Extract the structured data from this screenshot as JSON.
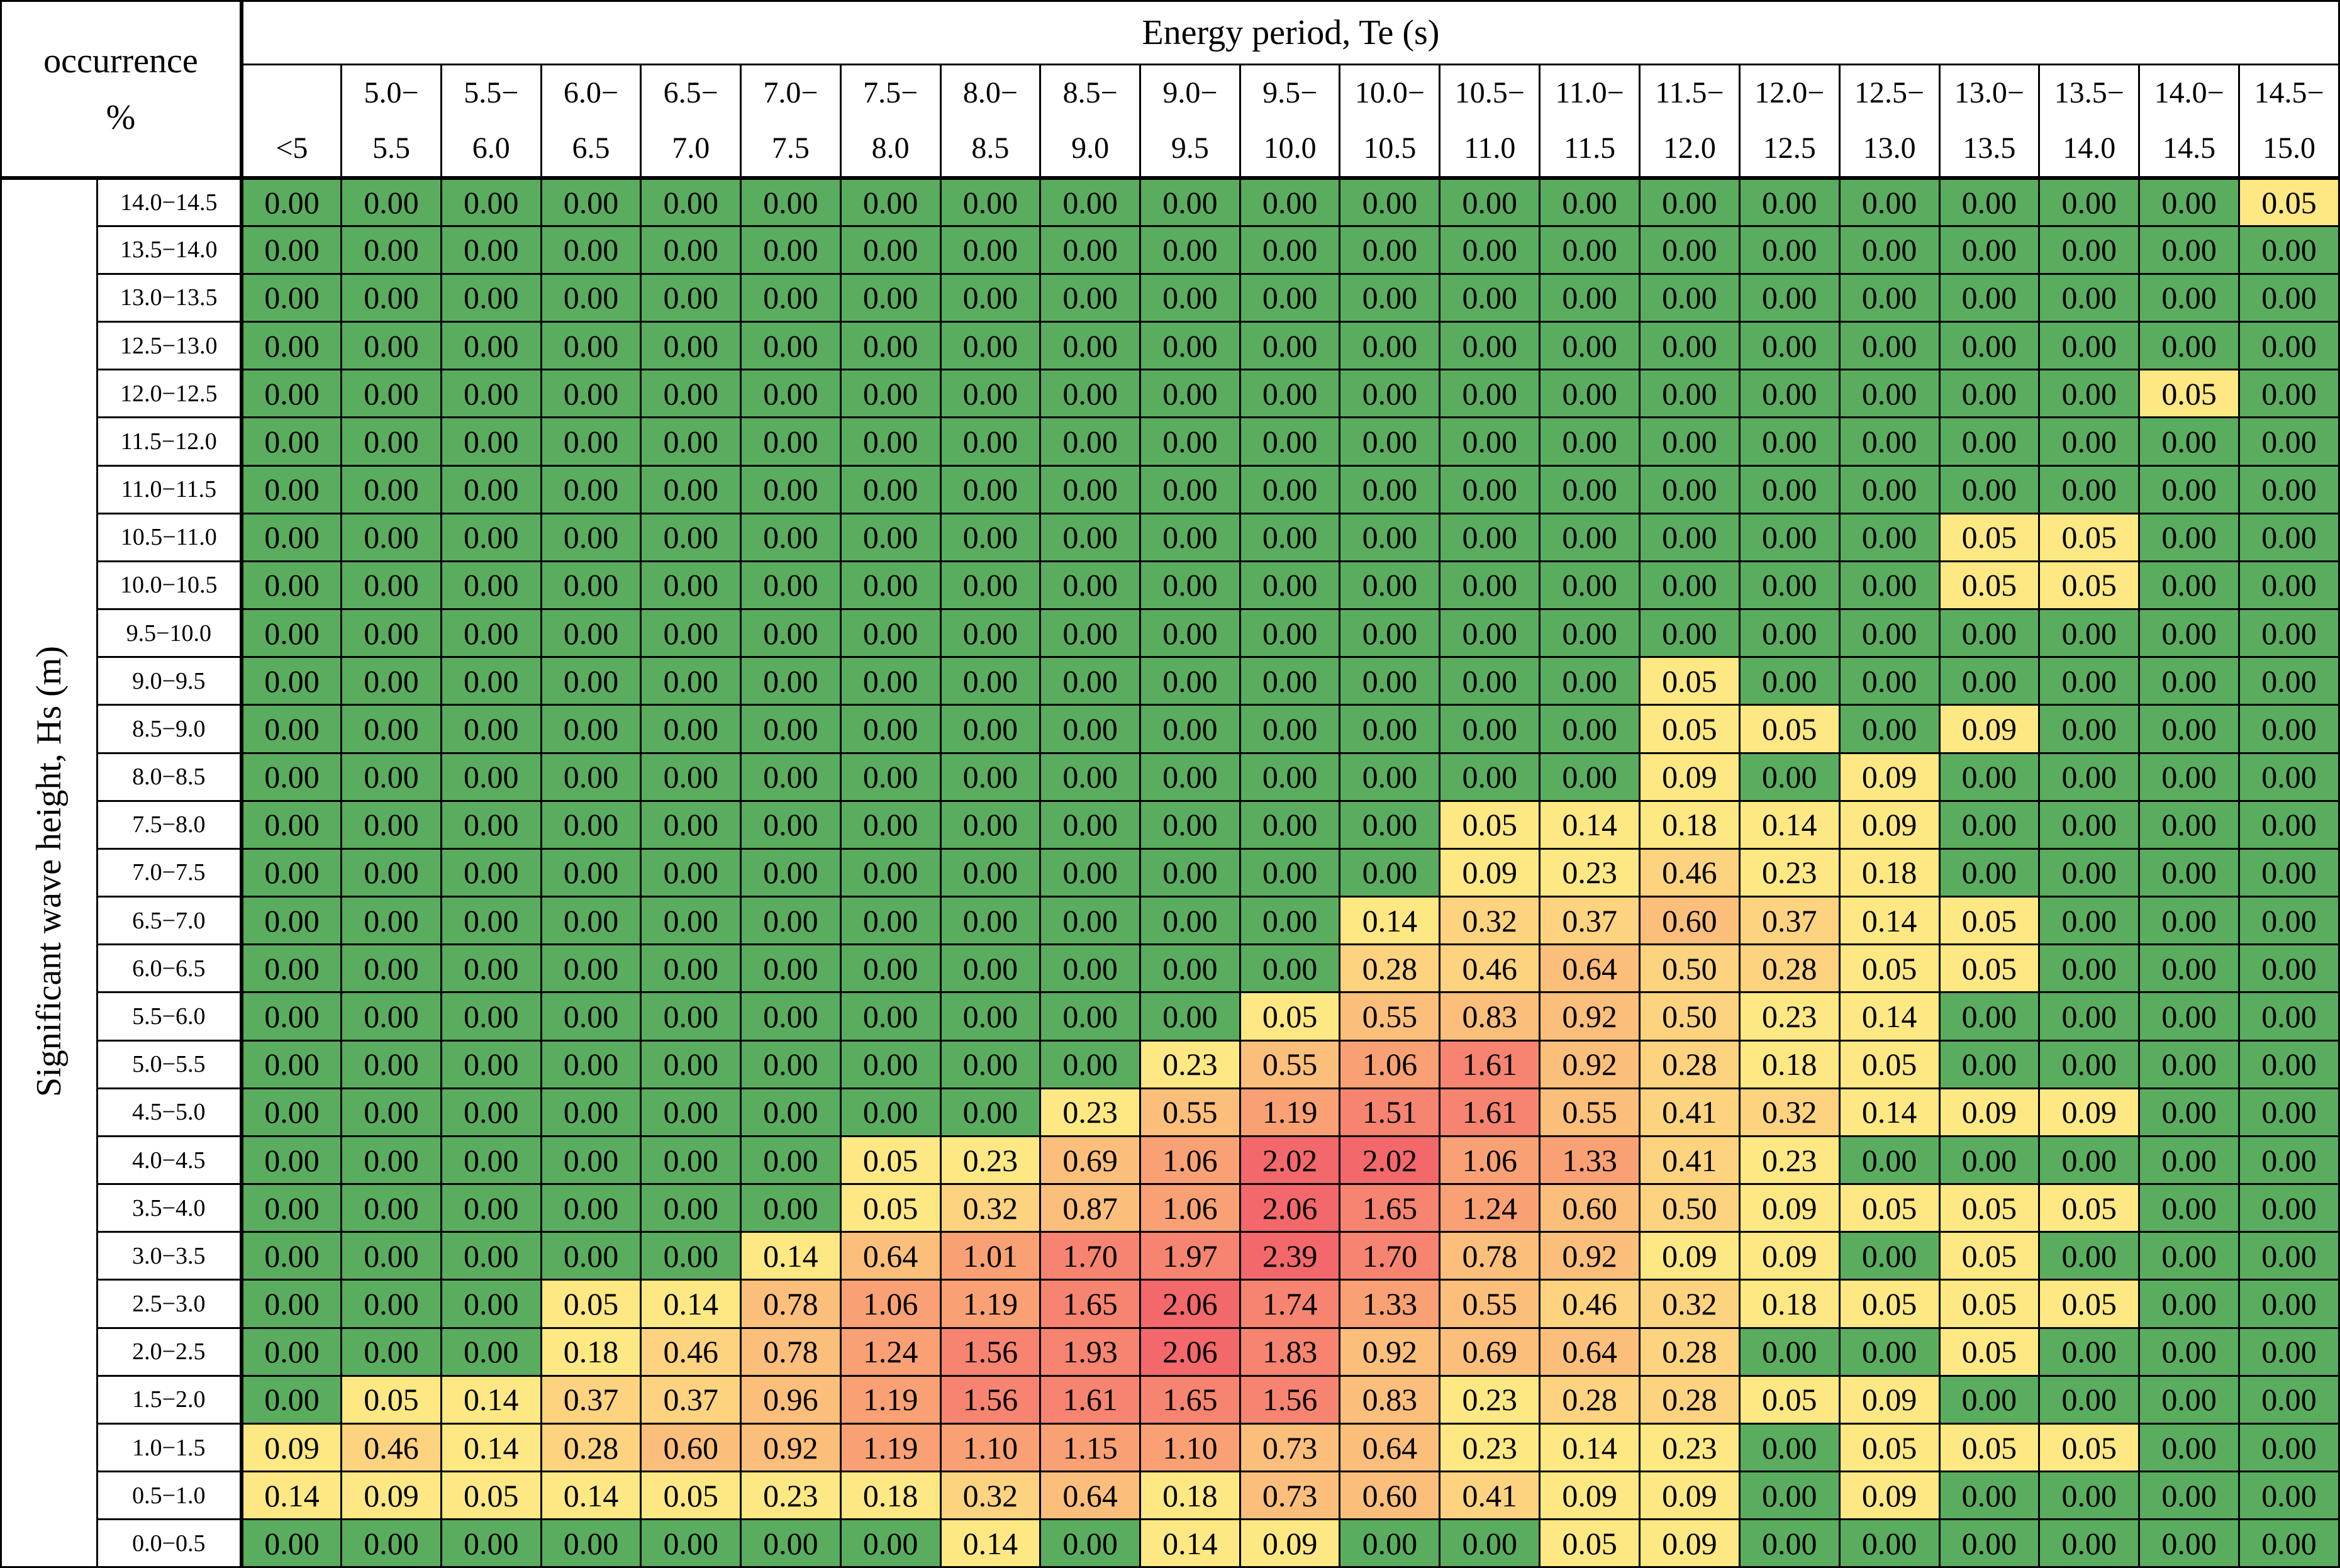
{
  "chart_data": {
    "type": "heatmap",
    "corner_label": [
      "occurrence",
      "%"
    ],
    "xlabel": "Energy period, Te (s)",
    "ylabel": "Significant wave height, Hs (m)",
    "x_categories": [
      [
        "",
        "<5"
      ],
      [
        "5.0−",
        "5.5"
      ],
      [
        "5.5−",
        "6.0"
      ],
      [
        "6.0−",
        "6.5"
      ],
      [
        "6.5−",
        "7.0"
      ],
      [
        "7.0−",
        "7.5"
      ],
      [
        "7.5−",
        "8.0"
      ],
      [
        "8.0−",
        "8.5"
      ],
      [
        "8.5−",
        "9.0"
      ],
      [
        "9.0−",
        "9.5"
      ],
      [
        "9.5−",
        "10.0"
      ],
      [
        "10.0−",
        "10.5"
      ],
      [
        "10.5−",
        "11.0"
      ],
      [
        "11.0−",
        "11.5"
      ],
      [
        "11.5−",
        "12.0"
      ],
      [
        "12.0−",
        "12.5"
      ],
      [
        "12.5−",
        "13.0"
      ],
      [
        "13.0−",
        "13.5"
      ],
      [
        "13.5−",
        "14.0"
      ],
      [
        "14.0−",
        "14.5"
      ],
      [
        "14.5−",
        "15.0"
      ]
    ],
    "y_categories": [
      "14.0−14.5",
      "13.5−14.0",
      "13.0−13.5",
      "12.5−13.0",
      "12.0−12.5",
      "11.5−12.0",
      "11.0−11.5",
      "10.5−11.0",
      "10.0−10.5",
      "9.5−10.0",
      "9.0−9.5",
      "8.5−9.0",
      "8.0−8.5",
      "7.5−8.0",
      "7.0−7.5",
      "6.5−7.0",
      "6.0−6.5",
      "5.5−6.0",
      "5.0−5.5",
      "4.5−5.0",
      "4.0−4.5",
      "3.5−4.0",
      "3.0−3.5",
      "2.5−3.0",
      "2.0−2.5",
      "1.5−2.0",
      "1.0−1.5",
      "0.5−1.0",
      "0.0−0.5"
    ],
    "values": [
      [
        "0.00",
        "0.00",
        "0.00",
        "0.00",
        "0.00",
        "0.00",
        "0.00",
        "0.00",
        "0.00",
        "0.00",
        "0.00",
        "0.00",
        "0.00",
        "0.00",
        "0.00",
        "0.00",
        "0.00",
        "0.00",
        "0.00",
        "0.00",
        "0.05"
      ],
      [
        "0.00",
        "0.00",
        "0.00",
        "0.00",
        "0.00",
        "0.00",
        "0.00",
        "0.00",
        "0.00",
        "0.00",
        "0.00",
        "0.00",
        "0.00",
        "0.00",
        "0.00",
        "0.00",
        "0.00",
        "0.00",
        "0.00",
        "0.00",
        "0.00"
      ],
      [
        "0.00",
        "0.00",
        "0.00",
        "0.00",
        "0.00",
        "0.00",
        "0.00",
        "0.00",
        "0.00",
        "0.00",
        "0.00",
        "0.00",
        "0.00",
        "0.00",
        "0.00",
        "0.00",
        "0.00",
        "0.00",
        "0.00",
        "0.00",
        "0.00"
      ],
      [
        "0.00",
        "0.00",
        "0.00",
        "0.00",
        "0.00",
        "0.00",
        "0.00",
        "0.00",
        "0.00",
        "0.00",
        "0.00",
        "0.00",
        "0.00",
        "0.00",
        "0.00",
        "0.00",
        "0.00",
        "0.00",
        "0.00",
        "0.00",
        "0.00"
      ],
      [
        "0.00",
        "0.00",
        "0.00",
        "0.00",
        "0.00",
        "0.00",
        "0.00",
        "0.00",
        "0.00",
        "0.00",
        "0.00",
        "0.00",
        "0.00",
        "0.00",
        "0.00",
        "0.00",
        "0.00",
        "0.00",
        "0.00",
        "0.05",
        "0.00"
      ],
      [
        "0.00",
        "0.00",
        "0.00",
        "0.00",
        "0.00",
        "0.00",
        "0.00",
        "0.00",
        "0.00",
        "0.00",
        "0.00",
        "0.00",
        "0.00",
        "0.00",
        "0.00",
        "0.00",
        "0.00",
        "0.00",
        "0.00",
        "0.00",
        "0.00"
      ],
      [
        "0.00",
        "0.00",
        "0.00",
        "0.00",
        "0.00",
        "0.00",
        "0.00",
        "0.00",
        "0.00",
        "0.00",
        "0.00",
        "0.00",
        "0.00",
        "0.00",
        "0.00",
        "0.00",
        "0.00",
        "0.00",
        "0.00",
        "0.00",
        "0.00"
      ],
      [
        "0.00",
        "0.00",
        "0.00",
        "0.00",
        "0.00",
        "0.00",
        "0.00",
        "0.00",
        "0.00",
        "0.00",
        "0.00",
        "0.00",
        "0.00",
        "0.00",
        "0.00",
        "0.00",
        "0.00",
        "0.05",
        "0.05",
        "0.00",
        "0.00"
      ],
      [
        "0.00",
        "0.00",
        "0.00",
        "0.00",
        "0.00",
        "0.00",
        "0.00",
        "0.00",
        "0.00",
        "0.00",
        "0.00",
        "0.00",
        "0.00",
        "0.00",
        "0.00",
        "0.00",
        "0.00",
        "0.05",
        "0.05",
        "0.00",
        "0.00"
      ],
      [
        "0.00",
        "0.00",
        "0.00",
        "0.00",
        "0.00",
        "0.00",
        "0.00",
        "0.00",
        "0.00",
        "0.00",
        "0.00",
        "0.00",
        "0.00",
        "0.00",
        "0.00",
        "0.00",
        "0.00",
        "0.00",
        "0.00",
        "0.00",
        "0.00"
      ],
      [
        "0.00",
        "0.00",
        "0.00",
        "0.00",
        "0.00",
        "0.00",
        "0.00",
        "0.00",
        "0.00",
        "0.00",
        "0.00",
        "0.00",
        "0.00",
        "0.00",
        "0.05",
        "0.00",
        "0.00",
        "0.00",
        "0.00",
        "0.00",
        "0.00"
      ],
      [
        "0.00",
        "0.00",
        "0.00",
        "0.00",
        "0.00",
        "0.00",
        "0.00",
        "0.00",
        "0.00",
        "0.00",
        "0.00",
        "0.00",
        "0.00",
        "0.00",
        "0.05",
        "0.05",
        "0.00",
        "0.09",
        "0.00",
        "0.00",
        "0.00"
      ],
      [
        "0.00",
        "0.00",
        "0.00",
        "0.00",
        "0.00",
        "0.00",
        "0.00",
        "0.00",
        "0.00",
        "0.00",
        "0.00",
        "0.00",
        "0.00",
        "0.00",
        "0.09",
        "0.00",
        "0.09",
        "0.00",
        "0.00",
        "0.00",
        "0.00"
      ],
      [
        "0.00",
        "0.00",
        "0.00",
        "0.00",
        "0.00",
        "0.00",
        "0.00",
        "0.00",
        "0.00",
        "0.00",
        "0.00",
        "0.00",
        "0.05",
        "0.14",
        "0.18",
        "0.14",
        "0.09",
        "0.00",
        "0.00",
        "0.00",
        "0.00"
      ],
      [
        "0.00",
        "0.00",
        "0.00",
        "0.00",
        "0.00",
        "0.00",
        "0.00",
        "0.00",
        "0.00",
        "0.00",
        "0.00",
        "0.00",
        "0.09",
        "0.23",
        "0.46",
        "0.23",
        "0.18",
        "0.00",
        "0.00",
        "0.00",
        "0.00"
      ],
      [
        "0.00",
        "0.00",
        "0.00",
        "0.00",
        "0.00",
        "0.00",
        "0.00",
        "0.00",
        "0.00",
        "0.00",
        "0.00",
        "0.14",
        "0.32",
        "0.37",
        "0.60",
        "0.37",
        "0.14",
        "0.05",
        "0.00",
        "0.00",
        "0.00"
      ],
      [
        "0.00",
        "0.00",
        "0.00",
        "0.00",
        "0.00",
        "0.00",
        "0.00",
        "0.00",
        "0.00",
        "0.00",
        "0.00",
        "0.28",
        "0.46",
        "0.64",
        "0.50",
        "0.28",
        "0.05",
        "0.05",
        "0.00",
        "0.00",
        "0.00"
      ],
      [
        "0.00",
        "0.00",
        "0.00",
        "0.00",
        "0.00",
        "0.00",
        "0.00",
        "0.00",
        "0.00",
        "0.00",
        "0.05",
        "0.55",
        "0.83",
        "0.92",
        "0.50",
        "0.23",
        "0.14",
        "0.00",
        "0.00",
        "0.00",
        "0.00"
      ],
      [
        "0.00",
        "0.00",
        "0.00",
        "0.00",
        "0.00",
        "0.00",
        "0.00",
        "0.00",
        "0.00",
        "0.23",
        "0.55",
        "1.06",
        "1.61",
        "0.92",
        "0.28",
        "0.18",
        "0.05",
        "0.00",
        "0.00",
        "0.00",
        "0.00"
      ],
      [
        "0.00",
        "0.00",
        "0.00",
        "0.00",
        "0.00",
        "0.00",
        "0.00",
        "0.00",
        "0.23",
        "0.55",
        "1.19",
        "1.51",
        "1.61",
        "0.55",
        "0.41",
        "0.32",
        "0.14",
        "0.09",
        "0.09",
        "0.00",
        "0.00"
      ],
      [
        "0.00",
        "0.00",
        "0.00",
        "0.00",
        "0.00",
        "0.00",
        "0.05",
        "0.23",
        "0.69",
        "1.06",
        "2.02",
        "2.02",
        "1.06",
        "1.33",
        "0.41",
        "0.23",
        "0.00",
        "0.00",
        "0.00",
        "0.00",
        "0.00"
      ],
      [
        "0.00",
        "0.00",
        "0.00",
        "0.00",
        "0.00",
        "0.00",
        "0.05",
        "0.32",
        "0.87",
        "1.06",
        "2.06",
        "1.65",
        "1.24",
        "0.60",
        "0.50",
        "0.09",
        "0.05",
        "0.05",
        "0.05",
        "0.00",
        "0.00"
      ],
      [
        "0.00",
        "0.00",
        "0.00",
        "0.00",
        "0.00",
        "0.14",
        "0.64",
        "1.01",
        "1.70",
        "1.97",
        "2.39",
        "1.70",
        "0.78",
        "0.92",
        "0.09",
        "0.09",
        "0.00",
        "0.05",
        "0.00",
        "0.00",
        "0.00"
      ],
      [
        "0.00",
        "0.00",
        "0.00",
        "0.05",
        "0.14",
        "0.78",
        "1.06",
        "1.19",
        "1.65",
        "2.06",
        "1.74",
        "1.33",
        "0.55",
        "0.46",
        "0.32",
        "0.18",
        "0.05",
        "0.05",
        "0.05",
        "0.00",
        "0.00"
      ],
      [
        "0.00",
        "0.00",
        "0.00",
        "0.18",
        "0.46",
        "0.78",
        "1.24",
        "1.56",
        "1.93",
        "2.06",
        "1.83",
        "0.92",
        "0.69",
        "0.64",
        "0.28",
        "0.00",
        "0.00",
        "0.05",
        "0.00",
        "0.00",
        "0.00"
      ],
      [
        "0.00",
        "0.05",
        "0.14",
        "0.37",
        "0.37",
        "0.96",
        "1.19",
        "1.56",
        "1.61",
        "1.65",
        "1.56",
        "0.83",
        "0.23",
        "0.28",
        "0.28",
        "0.05",
        "0.09",
        "0.00",
        "0.00",
        "0.00",
        "0.00"
      ],
      [
        "0.09",
        "0.46",
        "0.14",
        "0.28",
        "0.60",
        "0.92",
        "1.19",
        "1.10",
        "1.15",
        "1.10",
        "0.73",
        "0.64",
        "0.23",
        "0.14",
        "0.23",
        "0.00",
        "0.05",
        "0.05",
        "0.05",
        "0.00",
        "0.00"
      ],
      [
        "0.14",
        "0.09",
        "0.05",
        "0.14",
        "0.05",
        "0.23",
        "0.18",
        "0.32",
        "0.64",
        "0.18",
        "0.73",
        "0.60",
        "0.41",
        "0.09",
        "0.09",
        "0.00",
        "0.09",
        "0.00",
        "0.00",
        "0.00",
        "0.00"
      ],
      [
        "0.00",
        "0.00",
        "0.00",
        "0.00",
        "0.00",
        "0.00",
        "0.00",
        "0.14",
        "0.00",
        "0.14",
        "0.09",
        "0.00",
        "0.00",
        "0.05",
        "0.09",
        "0.00",
        "0.00",
        "0.00",
        "0.00",
        "0.00",
        "0.00"
      ]
    ],
    "color_scale": [
      "#5aad5e",
      "#fde883",
      "#fdd37f",
      "#fbbf7b",
      "#f9a174",
      "#f78470",
      "#f3686b"
    ]
  }
}
